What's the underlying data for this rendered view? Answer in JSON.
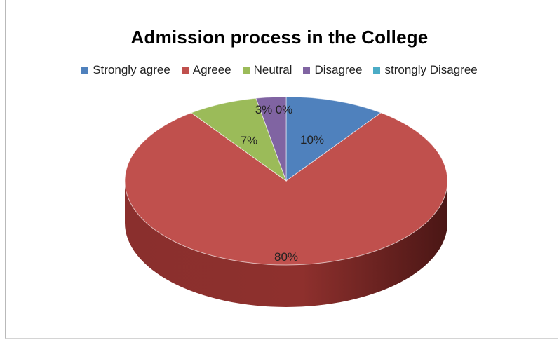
{
  "chart_data": {
    "type": "pie",
    "title": "Admission process in the College",
    "legend_position": "top",
    "categories": [
      "Strongly agree",
      "Agreee",
      "Neutral",
      "Disagree",
      "strongly Disagree"
    ],
    "values": [
      10,
      80,
      7,
      3,
      0
    ],
    "labels": [
      "10%",
      "80%",
      "7%",
      "3%",
      "0%"
    ],
    "colors": [
      "#4f81bd",
      "#c0504d",
      "#9bbb59",
      "#8064a2",
      "#4bacc6"
    ]
  }
}
